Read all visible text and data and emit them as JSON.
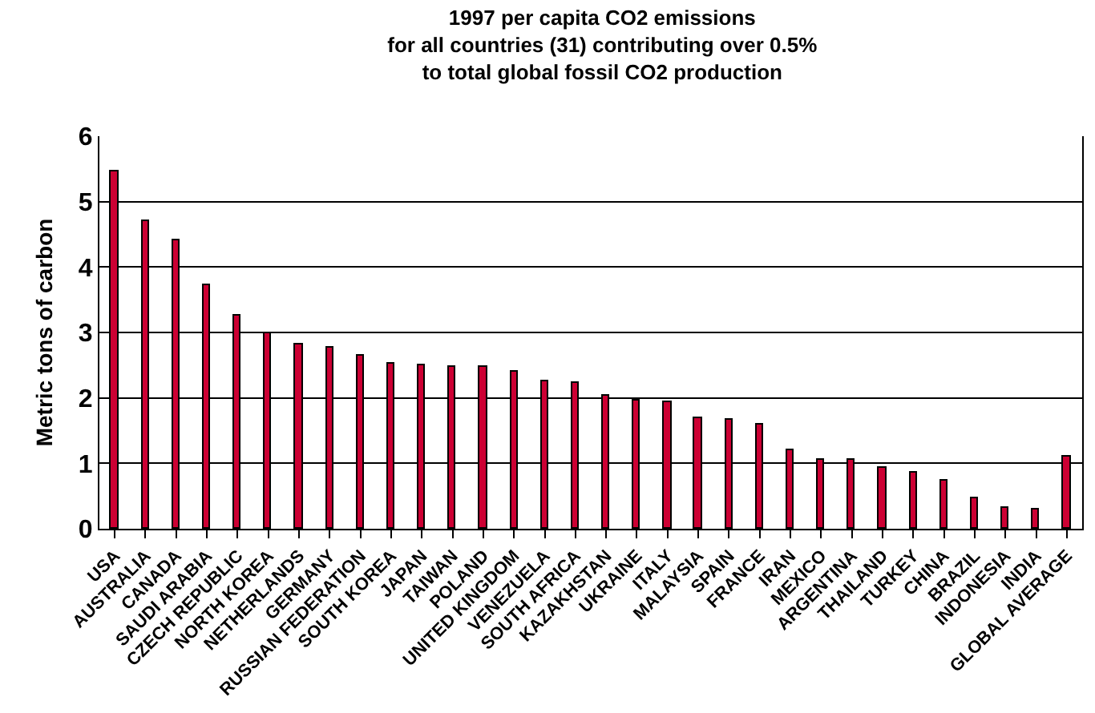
{
  "chart_data": {
    "type": "bar",
    "title": "1997 per capita CO2 emissions\nfor all countries (31) contributing over 0.5%\nto total global fossil CO2 production",
    "ylabel": "Metric tons of carbon",
    "categories": [
      "USA",
      "AUSTRALIA",
      "CANADA",
      "SAUDI ARABIA",
      "CZECH REPUBLIC",
      "NORTH KOREA",
      "NETHERLANDS",
      "GERMANY",
      "RUSSIAN FEDERATION",
      "SOUTH KOREA",
      "JAPAN",
      "TAIWAN",
      "POLAND",
      "UNITED KINGDOM",
      "VENEZUELA",
      "SOUTH AFRICA",
      "KAZAKHSTAN",
      "UKRAINE",
      "ITALY",
      "MALAYSIA",
      "SPAIN",
      "FRANCE",
      "IRAN",
      "MEXICO",
      "ARGENTINA",
      "THAILAND",
      "TURKEY",
      "CHINA",
      "BRAZIL",
      "INDONESIA",
      "INDIA",
      "GLOBAL AVERAGE"
    ],
    "values": [
      5.47,
      4.7,
      4.4,
      3.72,
      3.25,
      3.0,
      2.82,
      2.77,
      2.65,
      2.53,
      2.5,
      2.47,
      2.47,
      2.41,
      2.25,
      2.23,
      2.03,
      1.96,
      1.94,
      1.7,
      1.67,
      1.58,
      1.21,
      1.05,
      1.05,
      0.94,
      0.85,
      0.74,
      0.47,
      0.31,
      0.29,
      1.1
    ],
    "color": "#cc0033",
    "ylim": [
      0,
      6
    ],
    "yticks": [
      0,
      1,
      2,
      3,
      4,
      5,
      6
    ],
    "grid": "y"
  }
}
